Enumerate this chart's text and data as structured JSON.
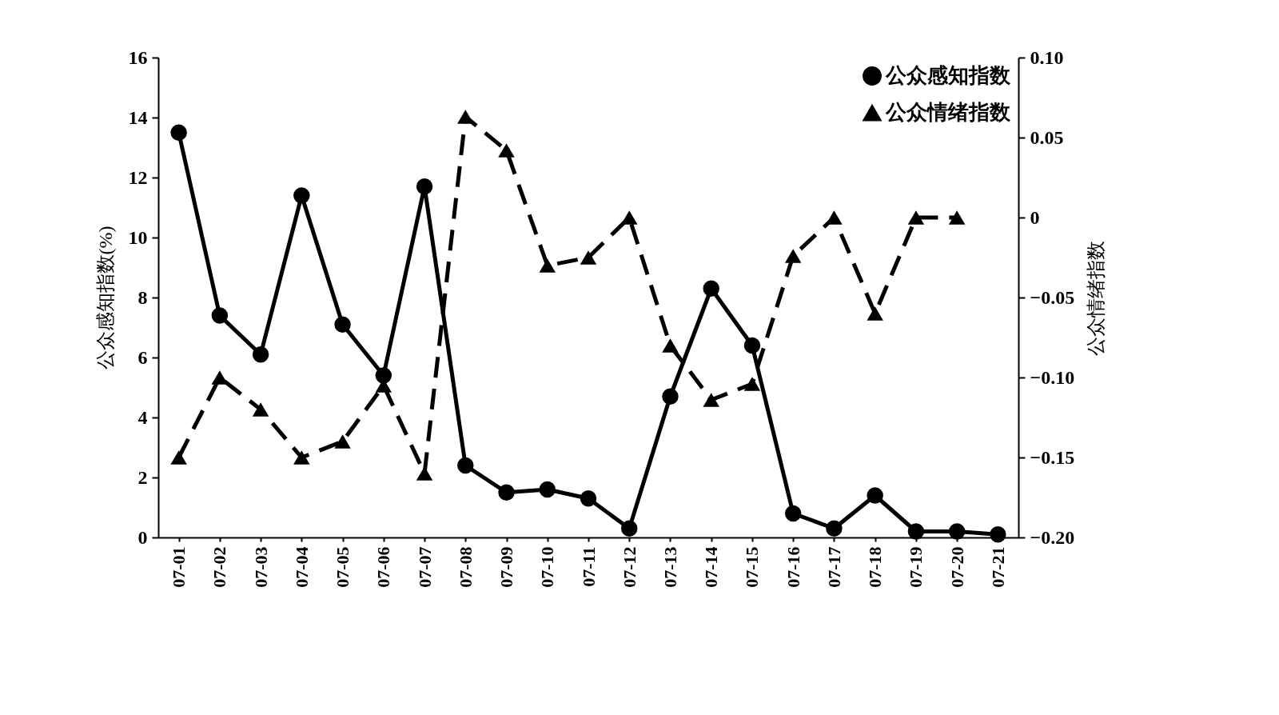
{
  "chart_data": {
    "type": "line",
    "ylabel": "公众感知指数(%)",
    "y2label": "公众情绪指数",
    "categories": [
      "07-01",
      "07-02",
      "07-03",
      "07-04",
      "07-05",
      "07-06",
      "07-07",
      "07-08",
      "07-09",
      "07-10",
      "07-11",
      "07-12",
      "07-13",
      "07-14",
      "07-15",
      "07-16",
      "07-17",
      "07-18",
      "07-19",
      "07-20",
      "07-21"
    ],
    "series": [
      {
        "name": "公众感知指数",
        "color": "#000000",
        "marker": "circle",
        "line_style": "solid",
        "values": [
          13.5,
          7.4,
          6.1,
          11.4,
          7.1,
          5.4,
          11.7,
          2.4,
          1.5,
          1.6,
          1.3,
          0.3,
          4.7,
          8.3,
          6.4,
          0.8,
          0.3,
          1.4,
          0.2,
          0.2,
          0.1
        ]
      },
      {
        "name": "公众情绪指数",
        "color": "#000000",
        "marker": "triangle",
        "line_style": "dashed",
        "axis": "y2",
        "values": [
          -0.15,
          -0.1,
          -0.12,
          -0.15,
          -0.14,
          -0.105,
          -0.16,
          0.063,
          0.042,
          -0.03,
          -0.025,
          0,
          -0.08,
          -0.114,
          -0.104,
          -0.024,
          0,
          -0.06,
          0,
          0,
          null
        ]
      }
    ],
    "ylim": [
      0,
      16
    ],
    "yticks": [
      0,
      2,
      4,
      6,
      8,
      10,
      12,
      14,
      16
    ],
    "y2lim": [
      -0.2,
      0.1
    ],
    "y2ticks": [
      {
        "value": -0.2,
        "label": "−0.20"
      },
      {
        "value": -0.15,
        "label": "−0.15"
      },
      {
        "value": -0.1,
        "label": "−0.10"
      },
      {
        "value": -0.05,
        "label": "−0.05"
      },
      0,
      {
        "value": 0.05,
        "label": "0.05"
      },
      {
        "value": 0.1,
        "label": "0.10"
      }
    ],
    "grid": false,
    "legend": "top right"
  }
}
